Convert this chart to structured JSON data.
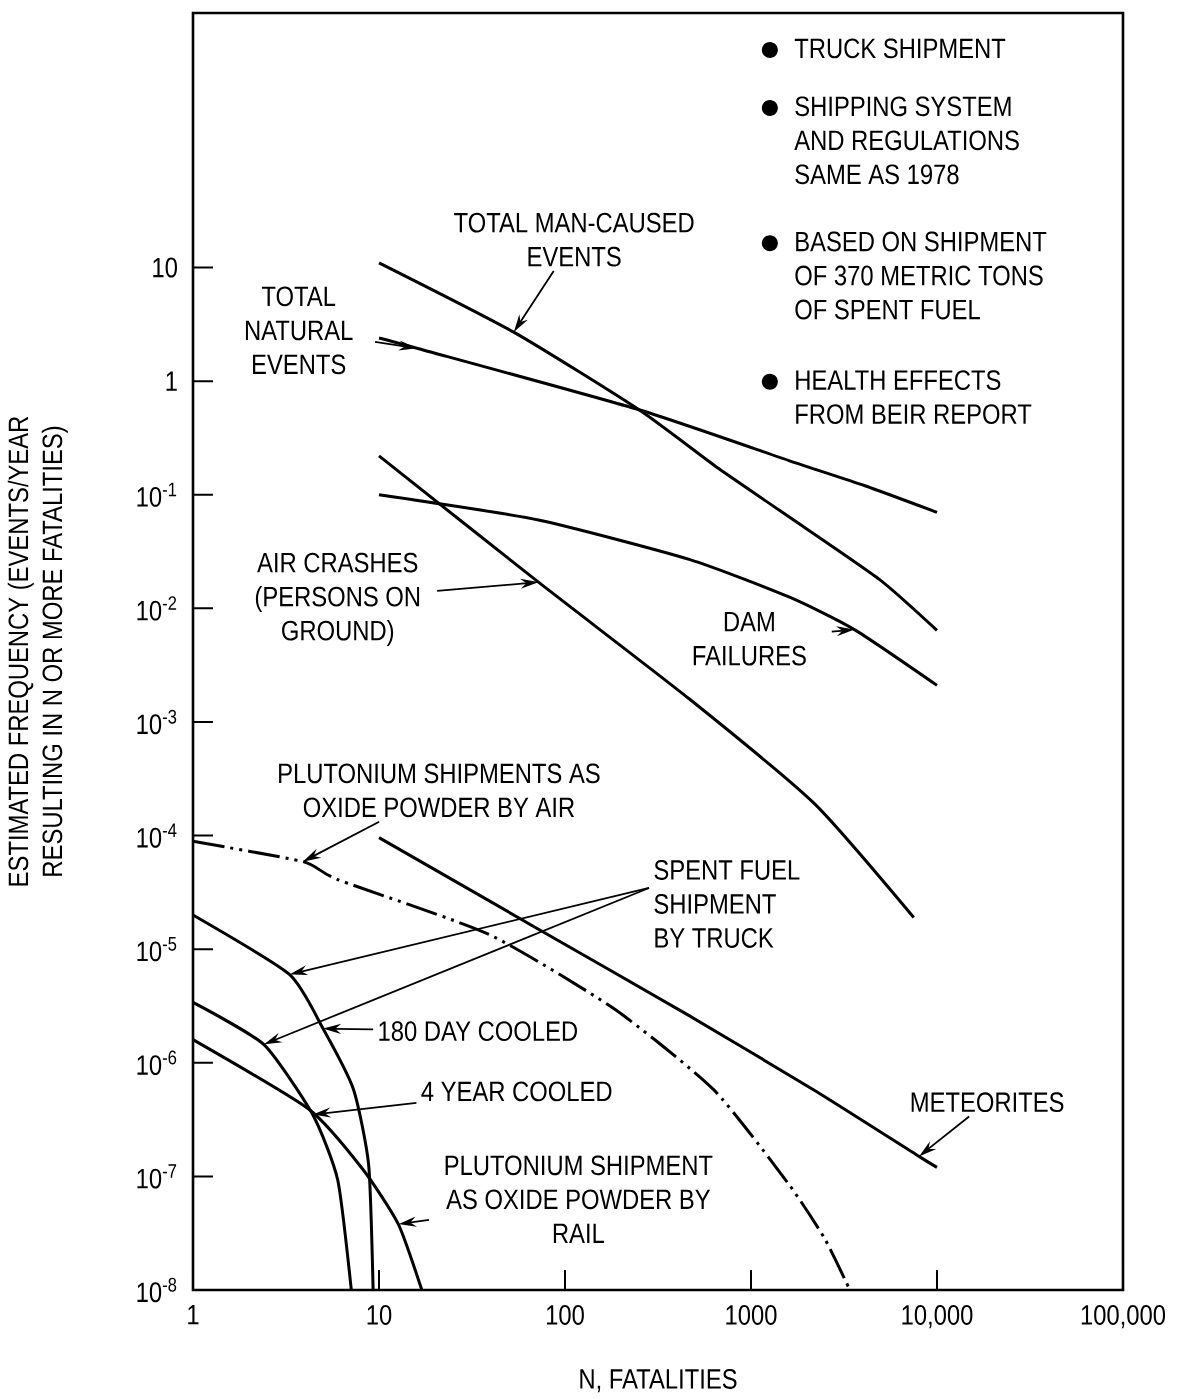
{
  "chart_data": {
    "type": "line",
    "log": "xy",
    "xlabel": "N, FATALITIES",
    "ylabel": "ESTIMATED FREQUENCY (EVENTS/YEAR RESULTING IN N OR MORE FATALITIES)",
    "xlim": [
      1,
      100000
    ],
    "ylim": [
      1e-08,
      1740
    ],
    "xticks": [
      1,
      10,
      100,
      1000,
      {
        "value": 10000,
        "label": "10,000"
      },
      {
        "value": 100000,
        "label": "100,000"
      }
    ],
    "yticks": [
      {
        "value": 1e-08,
        "label": "10$^{-8}$"
      },
      {
        "value": 1e-07,
        "label": "10$^{-7}$"
      },
      {
        "value": 1e-06,
        "label": "10$^{-6}$"
      },
      {
        "value": 1e-05,
        "label": "10$^{-5}$"
      },
      {
        "value": 0.0001,
        "label": "10$^{-4}$"
      },
      {
        "value": 0.001,
        "label": "10$^{-3}$"
      },
      {
        "value": 0.01,
        "label": "10$^{-2}$"
      },
      {
        "value": 0.1,
        "label": "10$^{-1}$"
      },
      1,
      10
    ],
    "series": [
      {
        "color": "#000000",
        "x": [
          10,
          53,
          250,
          670,
          1600,
          4900,
          10000
        ],
        "values": [
          11,
          2.7,
          0.56,
          0.17,
          0.064,
          0.018,
          0.0064
        ]
      },
      {
        "color": "#000000",
        "x": [
          10,
          16,
          250,
          1600,
          4100,
          10000
        ],
        "values": [
          2.4,
          1.95,
          0.56,
          0.2,
          0.12,
          0.07
        ]
      },
      {
        "color": "#000000",
        "x": [
          10,
          72,
          465,
          2200,
          7500
        ],
        "values": [
          0.22,
          0.017,
          0.0016,
          0.00019,
          1.9e-05
        ]
      },
      {
        "color": "#000000",
        "x": [
          10,
          72,
          465,
          1600,
          3600,
          10000
        ],
        "values": [
          0.1,
          0.06,
          0.027,
          0.0126,
          0.0065,
          0.0021
        ]
      },
      {
        "color": "#000000",
        "x": [
          10,
          72,
          465,
          2200,
          8000,
          10000
        ],
        "values": [
          9.6e-05,
          1.5e-05,
          2.6e-06,
          5.7e-07,
          1.5e-07,
          1.2e-07
        ]
      },
      {
        "color": "#000000",
        "line_style": "dashed",
        "x": [
          1,
          3.9,
          6,
          39,
          183,
          630,
          1600,
          2500,
          3400
        ],
        "values": [
          8.9e-05,
          5.9e-05,
          4.1e-05,
          1.35e-05,
          3e-06,
          5.8e-07,
          8.5e-08,
          2.8e-08,
          1e-08
        ]
      },
      {
        "color": "#000000",
        "x": [
          1,
          3.3,
          5,
          7.3,
          8.8,
          9.3
        ],
        "values": [
          2e-05,
          6e-06,
          2e-06,
          5.8e-07,
          1.26e-07,
          1e-08
        ]
      },
      {
        "color": "#000000",
        "x": [
          1,
          2.4,
          4.4,
          6,
          7.1
        ],
        "values": [
          3.4e-06,
          1.45e-06,
          3.5e-07,
          9.3e-08,
          1e-08
        ]
      },
      {
        "color": "#000000",
        "x": [
          1,
          4.2,
          8.2,
          12.7,
          17
        ],
        "values": [
          1.6e-06,
          3.9e-07,
          1.15e-07,
          3.8e-08,
          1e-08
        ]
      }
    ],
    "annotations": [
      {
        "text": "TOTAL MAN-CAUSED EVENTS",
        "x": 53,
        "y": 2.7
      },
      {
        "text": "TOTAL NATURAL EVENTS",
        "x": 16,
        "y": 1.95
      },
      "AIR CRASHES (PERSONS ON GROUND)",
      {
        "text": "DAM FAILURES",
        "x": 3600,
        "y": 0.0065
      },
      {
        "text": "METEORITES",
        "x": 8000,
        "y": 1.5e-07
      },
      {
        "text": "PLUTONIUM SHIPMENTS AS OXIDE POWDER BY AIR",
        "x": 3.9,
        "y": 5.9e-05
      },
      {
        "text": "180 DAY COOLED",
        "x": 5,
        "y": 2e-06
      },
      "4 YEAR COOLED",
      {
        "text": "PLUTONIUM SHIPMENT AS OXIDE POWDER BY RAIL",
        "x": 12.7,
        "y": 3.8e-08
      },
      "SPENT FUEL SHIPMENT BY TRUCK",
      "TRUCK SHIPMENT",
      "SHIPPING SYSTEM AND REGULATIONS SAME AS 1978",
      "BASED ON SHIPMENT OF 370 METRIC TONS OF SPENT FUEL",
      "HEALTH EFFECTS FROM BEIR REPORT"
    ]
  }
}
